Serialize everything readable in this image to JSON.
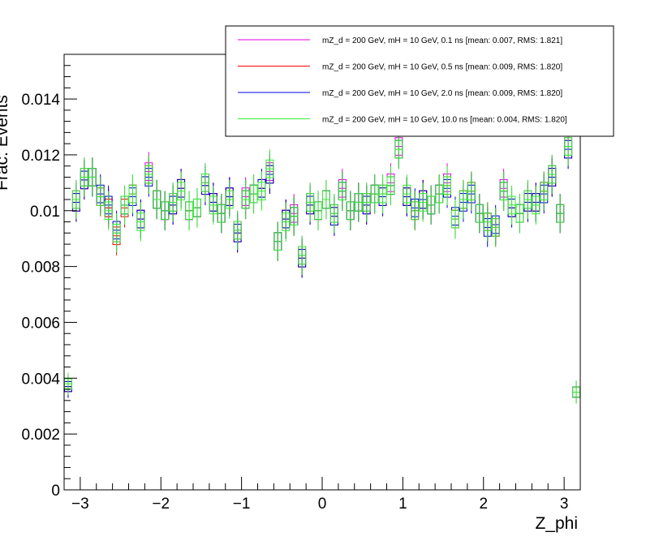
{
  "chart_data": {
    "type": "histogram",
    "xlabel": "Z_phi",
    "ylabel": "Frac. Events",
    "xlim": [
      -3.2,
      3.2
    ],
    "ylim": [
      0,
      0.0156
    ],
    "n_bins": 64,
    "x_ticks": [
      -3,
      -2,
      -1,
      0,
      1,
      2,
      3
    ],
    "x_tick_labels": [
      "−3",
      "−2",
      "−1",
      "0",
      "1",
      "2",
      "3"
    ],
    "y_ticks": [
      0,
      0.002,
      0.004,
      0.006,
      0.008,
      0.01,
      0.012,
      0.014
    ],
    "y_tick_labels": [
      "0",
      "0.002",
      "0.004",
      "0.006",
      "0.008",
      "0.01",
      "0.012",
      "0.014"
    ],
    "legend_placement": "top-right",
    "series": [
      {
        "name": "mZ_d = 200 GeV, mH = 10 GeV, 0.1 ns [mean: 0.007, RMS: 1.821]",
        "color": "#e600e6",
        "values": [
          0.0037,
          0.0104,
          0.0112,
          0.0112,
          0.0105,
          0.0101,
          0.0092,
          0.0102,
          0.0106,
          0.0097,
          0.0114,
          0.0104,
          0.01,
          0.0103,
          0.0108,
          0.01,
          0.0101,
          0.011,
          0.0103,
          0.0099,
          0.0105,
          0.0093,
          0.0105,
          0.0106,
          0.0108,
          0.0114,
          0.0089,
          0.0097,
          0.0099,
          0.0084,
          0.0103,
          0.01,
          0.0104,
          0.0099,
          0.0108,
          0.01,
          0.0103,
          0.0103,
          0.0106,
          0.0106,
          0.011,
          0.0123,
          0.0105,
          0.01,
          0.0104,
          0.0102,
          0.0106,
          0.011,
          0.0097,
          0.0104,
          0.0107,
          0.0099,
          0.0096,
          0.0094,
          0.0108,
          0.0101,
          0.0099,
          0.0104,
          0.0103,
          0.0107,
          0.0113,
          0.0099,
          0.0123,
          0.0035
        ],
        "errors": [
          0.0004,
          0.0007,
          0.0007,
          0.0007,
          0.0007,
          0.0007,
          0.0007,
          0.0007,
          0.0007,
          0.0007,
          0.0007,
          0.0007,
          0.0007,
          0.0007,
          0.0007,
          0.0007,
          0.0007,
          0.0007,
          0.0007,
          0.0007,
          0.0007,
          0.0007,
          0.0007,
          0.0007,
          0.0007,
          0.0007,
          0.0007,
          0.0007,
          0.0007,
          0.0007,
          0.0007,
          0.0007,
          0.0007,
          0.0007,
          0.0007,
          0.0007,
          0.0007,
          0.0007,
          0.0007,
          0.0007,
          0.0007,
          0.0007,
          0.0007,
          0.0007,
          0.0007,
          0.0007,
          0.0007,
          0.0007,
          0.0007,
          0.0007,
          0.0007,
          0.0007,
          0.0007,
          0.0007,
          0.0007,
          0.0007,
          0.0007,
          0.0007,
          0.0007,
          0.0007,
          0.0007,
          0.0007,
          0.0007,
          0.0004
        ]
      },
      {
        "name": "mZ_d = 200 GeV, mH = 10 GeV, 0.5 ns [mean: 0.009, RMS: 1.820]",
        "color": "#ff0000",
        "values": [
          0.0037,
          0.0103,
          0.0111,
          0.0112,
          0.0105,
          0.0101,
          0.0091,
          0.0101,
          0.0106,
          0.0097,
          0.0113,
          0.0104,
          0.01,
          0.0102,
          0.0108,
          0.01,
          0.0101,
          0.0109,
          0.0103,
          0.0099,
          0.0105,
          0.0092,
          0.0104,
          0.0106,
          0.0108,
          0.0113,
          0.0089,
          0.0097,
          0.0098,
          0.0083,
          0.0102,
          0.01,
          0.0104,
          0.0098,
          0.0107,
          0.01,
          0.0103,
          0.0102,
          0.0106,
          0.0105,
          0.0109,
          0.0122,
          0.0105,
          0.01,
          0.0104,
          0.0102,
          0.0106,
          0.0109,
          0.0097,
          0.0104,
          0.0107,
          0.0099,
          0.0096,
          0.0094,
          0.0107,
          0.0101,
          0.0099,
          0.0103,
          0.0103,
          0.0107,
          0.0112,
          0.0099,
          0.0122,
          0.0035
        ],
        "errors": [
          0.0004,
          0.0007,
          0.0007,
          0.0007,
          0.0007,
          0.0007,
          0.0007,
          0.0007,
          0.0007,
          0.0007,
          0.0007,
          0.0007,
          0.0007,
          0.0007,
          0.0007,
          0.0007,
          0.0007,
          0.0007,
          0.0007,
          0.0007,
          0.0007,
          0.0007,
          0.0007,
          0.0007,
          0.0007,
          0.0007,
          0.0007,
          0.0007,
          0.0007,
          0.0007,
          0.0007,
          0.0007,
          0.0007,
          0.0007,
          0.0007,
          0.0007,
          0.0007,
          0.0007,
          0.0007,
          0.0007,
          0.0007,
          0.0007,
          0.0007,
          0.0007,
          0.0007,
          0.0007,
          0.0007,
          0.0007,
          0.0007,
          0.0007,
          0.0007,
          0.0007,
          0.0007,
          0.0007,
          0.0007,
          0.0007,
          0.0007,
          0.0007,
          0.0007,
          0.0007,
          0.0007,
          0.0007,
          0.0007,
          0.0004
        ]
      },
      {
        "name": "mZ_d = 200 GeV, mH = 10 GeV, 2.0 ns [mean: 0.009, RMS: 1.820]",
        "color": "#0000dd",
        "values": [
          0.0037,
          0.0103,
          0.0111,
          0.0112,
          0.0106,
          0.0102,
          0.0093,
          0.0102,
          0.0105,
          0.0097,
          0.0112,
          0.0104,
          0.01,
          0.0102,
          0.0108,
          0.01,
          0.0101,
          0.0109,
          0.0103,
          0.0099,
          0.0105,
          0.0092,
          0.0104,
          0.0106,
          0.0108,
          0.0113,
          0.0089,
          0.0097,
          0.0098,
          0.0083,
          0.0102,
          0.01,
          0.0104,
          0.0098,
          0.0107,
          0.01,
          0.0103,
          0.0102,
          0.0106,
          0.0105,
          0.0109,
          0.0122,
          0.0105,
          0.0101,
          0.0104,
          0.0102,
          0.0106,
          0.0108,
          0.0098,
          0.0103,
          0.0106,
          0.0099,
          0.0094,
          0.0095,
          0.0107,
          0.0101,
          0.0099,
          0.0103,
          0.0103,
          0.0106,
          0.0112,
          0.0099,
          0.0122,
          0.0035
        ],
        "errors": [
          0.0004,
          0.0007,
          0.0007,
          0.0007,
          0.0007,
          0.0007,
          0.0007,
          0.0007,
          0.0007,
          0.0007,
          0.0007,
          0.0007,
          0.0007,
          0.0007,
          0.0007,
          0.0007,
          0.0007,
          0.0007,
          0.0007,
          0.0007,
          0.0007,
          0.0007,
          0.0007,
          0.0007,
          0.0007,
          0.0007,
          0.0007,
          0.0007,
          0.0007,
          0.0007,
          0.0007,
          0.0007,
          0.0007,
          0.0007,
          0.0007,
          0.0007,
          0.0007,
          0.0007,
          0.0007,
          0.0007,
          0.0007,
          0.0007,
          0.0007,
          0.0007,
          0.0007,
          0.0007,
          0.0007,
          0.0007,
          0.0007,
          0.0007,
          0.0007,
          0.0007,
          0.0007,
          0.0007,
          0.0007,
          0.0007,
          0.0007,
          0.0007,
          0.0007,
          0.0007,
          0.0007,
          0.0007,
          0.0007,
          0.0004
        ]
      },
      {
        "name": "mZ_d = 200 GeV, mH = 10 GeV, 10.0 ns [mean: 0.004, RMS: 1.820]",
        "color": "#33ee33",
        "values": [
          0.0038,
          0.0104,
          0.0112,
          0.0112,
          0.0105,
          0.01,
          0.0092,
          0.0102,
          0.0106,
          0.0096,
          0.0113,
          0.0104,
          0.01,
          0.0103,
          0.0107,
          0.01,
          0.0101,
          0.011,
          0.0102,
          0.0099,
          0.0104,
          0.0093,
          0.0104,
          0.0106,
          0.0107,
          0.0115,
          0.0089,
          0.0096,
          0.0098,
          0.0084,
          0.0103,
          0.01,
          0.0104,
          0.0099,
          0.0107,
          0.01,
          0.0103,
          0.0103,
          0.0106,
          0.0106,
          0.0109,
          0.0122,
          0.0106,
          0.01,
          0.0103,
          0.0102,
          0.0106,
          0.0109,
          0.0097,
          0.0104,
          0.0107,
          0.0099,
          0.0096,
          0.0094,
          0.0107,
          0.0102,
          0.0099,
          0.0104,
          0.0102,
          0.0107,
          0.0113,
          0.0099,
          0.0123,
          0.0035
        ],
        "errors": [
          0.0004,
          0.0007,
          0.0007,
          0.0007,
          0.0007,
          0.0007,
          0.0007,
          0.0007,
          0.0007,
          0.0007,
          0.0007,
          0.0007,
          0.0007,
          0.0007,
          0.0007,
          0.0007,
          0.0007,
          0.0007,
          0.0007,
          0.0007,
          0.0007,
          0.0007,
          0.0007,
          0.0007,
          0.0007,
          0.0007,
          0.0007,
          0.0007,
          0.0007,
          0.0007,
          0.0007,
          0.0007,
          0.0007,
          0.0007,
          0.0007,
          0.0007,
          0.0007,
          0.0007,
          0.0007,
          0.0007,
          0.0007,
          0.0007,
          0.0007,
          0.0007,
          0.0007,
          0.0007,
          0.0007,
          0.0007,
          0.0007,
          0.0007,
          0.0007,
          0.0007,
          0.0007,
          0.0007,
          0.0007,
          0.0007,
          0.0007,
          0.0007,
          0.0007,
          0.0007,
          0.0007,
          0.0007,
          0.0007,
          0.0004
        ]
      }
    ]
  }
}
